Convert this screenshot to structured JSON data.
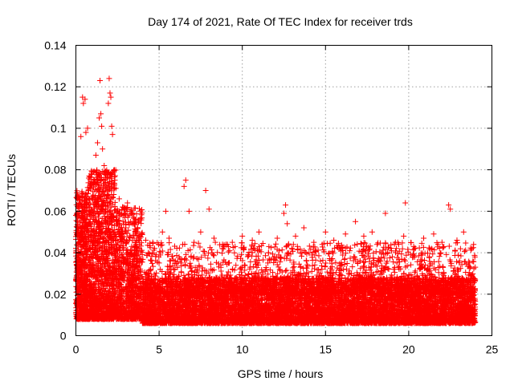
{
  "chart_data": {
    "type": "scatter",
    "title": "Day 174 of 2021, Rate Of TEC Index for receiver trds",
    "xlabel": "GPS time / hours",
    "ylabel": "ROTI / TECUs",
    "xlim": [
      0,
      25
    ],
    "ylim": [
      0,
      0.14
    ],
    "x_ticks": [
      0,
      5,
      10,
      15,
      20,
      25
    ],
    "x_tick_labels": [
      "0",
      "5",
      "10",
      "15",
      "20",
      "25"
    ],
    "y_ticks": [
      0,
      0.02,
      0.04,
      0.06,
      0.08,
      0.1,
      0.12,
      0.14
    ],
    "y_tick_labels": [
      "0",
      "0.02",
      "0.04",
      "0.06",
      "0.08",
      "0.1",
      "0.12",
      "0.14"
    ],
    "grid": true,
    "marker": "+",
    "color": "#ff0000",
    "series": [
      {
        "points": [
          [
            0.2,
            0.064
          ],
          [
            0.35,
            0.058
          ],
          [
            0.4,
            0.052
          ],
          [
            0.45,
            0.06
          ],
          [
            0.3,
            0.096
          ],
          [
            0.4,
            0.115
          ],
          [
            0.45,
            0.112
          ],
          [
            0.55,
            0.114
          ],
          [
            0.6,
            0.098
          ],
          [
            0.7,
            0.1
          ],
          [
            0.8,
            0.077
          ],
          [
            0.9,
            0.071
          ],
          [
            1.0,
            0.067
          ],
          [
            1.1,
            0.075
          ],
          [
            1.2,
            0.087
          ],
          [
            1.3,
            0.093
          ],
          [
            1.4,
            0.105
          ],
          [
            1.45,
            0.123
          ],
          [
            1.5,
            0.107
          ],
          [
            1.55,
            0.101
          ],
          [
            1.6,
            0.09
          ],
          [
            1.7,
            0.082
          ],
          [
            1.8,
            0.079
          ],
          [
            1.9,
            0.078
          ],
          [
            1.95,
            0.112
          ],
          [
            2.0,
            0.124
          ],
          [
            2.05,
            0.117
          ],
          [
            2.1,
            0.115
          ],
          [
            2.15,
            0.101
          ],
          [
            2.2,
            0.097
          ],
          [
            2.3,
            0.08
          ],
          [
            2.4,
            0.071
          ],
          [
            2.6,
            0.066
          ],
          [
            2.8,
            0.062
          ],
          [
            3.0,
            0.052
          ],
          [
            3.2,
            0.058
          ],
          [
            3.5,
            0.047
          ],
          [
            3.1,
            0.064
          ],
          [
            3.3,
            0.06
          ],
          [
            3.8,
            0.042
          ],
          [
            4.2,
            0.046
          ],
          [
            4.6,
            0.04
          ],
          [
            5.2,
            0.05
          ],
          [
            5.4,
            0.06
          ],
          [
            5.6,
            0.047
          ],
          [
            6.2,
            0.038
          ],
          [
            6.5,
            0.072
          ],
          [
            6.6,
            0.075
          ],
          [
            6.8,
            0.06
          ],
          [
            7.1,
            0.045
          ],
          [
            7.5,
            0.05
          ],
          [
            7.8,
            0.07
          ],
          [
            8.0,
            0.061
          ],
          [
            8.3,
            0.047
          ],
          [
            8.8,
            0.042
          ],
          [
            9.4,
            0.045
          ],
          [
            10.0,
            0.048
          ],
          [
            10.6,
            0.046
          ],
          [
            11.0,
            0.05
          ],
          [
            11.6,
            0.043
          ],
          [
            12.1,
            0.047
          ],
          [
            12.5,
            0.059
          ],
          [
            12.6,
            0.063
          ],
          [
            12.7,
            0.054
          ],
          [
            13.2,
            0.048
          ],
          [
            13.7,
            0.052
          ],
          [
            14.3,
            0.045
          ],
          [
            14.8,
            0.044
          ],
          [
            15.0,
            0.05
          ],
          [
            15.5,
            0.046
          ],
          [
            16.2,
            0.049
          ],
          [
            16.8,
            0.055
          ],
          [
            17.3,
            0.048
          ],
          [
            17.8,
            0.05
          ],
          [
            18.1,
            0.044
          ],
          [
            18.6,
            0.059
          ],
          [
            19.2,
            0.045
          ],
          [
            19.7,
            0.048
          ],
          [
            19.8,
            0.064
          ],
          [
            20.3,
            0.043
          ],
          [
            20.9,
            0.047
          ],
          [
            21.5,
            0.049
          ],
          [
            22.0,
            0.045
          ],
          [
            22.4,
            0.063
          ],
          [
            22.5,
            0.061
          ],
          [
            22.9,
            0.046
          ],
          [
            23.3,
            0.05
          ],
          [
            23.8,
            0.042
          ],
          [
            23.9,
            0.044
          ],
          [
            24.0,
            0.033
          ]
        ]
      }
    ],
    "noise_bands": [
      {
        "x0": 0.0,
        "x1": 0.7,
        "lo": 0.008,
        "hi": 0.07,
        "density": 700
      },
      {
        "x0": 0.7,
        "x1": 2.4,
        "lo": 0.008,
        "hi": 0.08,
        "density": 1400
      },
      {
        "x0": 2.4,
        "x1": 4.0,
        "lo": 0.008,
        "hi": 0.062,
        "density": 900
      },
      {
        "x0": 4.0,
        "x1": 24.0,
        "lo": 0.006,
        "hi": 0.028,
        "density": 9000
      },
      {
        "x0": 4.0,
        "x1": 24.0,
        "lo": 0.02,
        "hi": 0.045,
        "density": 1800
      }
    ]
  }
}
